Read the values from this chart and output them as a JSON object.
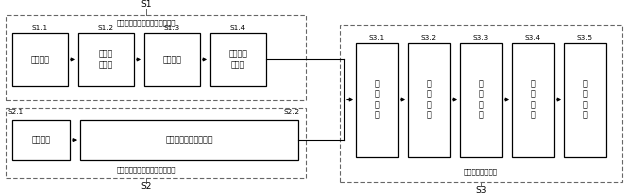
{
  "bg_color": "#ffffff",
  "s1_label": "S1",
  "s1_sublabel": "采集目标的目标数据和环境坐标",
  "s1_box_labels": [
    "S1.1",
    "S1.2",
    "S1.3",
    "S1.4"
  ],
  "s1_boxes": [
    "目标数据",
    "数据特\n征变换",
    "数据关联",
    "自适应滤\n波预测"
  ],
  "s2_label": "S2",
  "s2_sublabel": "采集目标的图像信息和像素坐标",
  "s2_box_labels": [
    "S2.1",
    "S2.2"
  ],
  "s2_box1": "图像信息",
  "s2_box2": "图像处理目标提取特征",
  "s3_label": "S3",
  "s3_sublabel": "雷达视频信息融合",
  "s3_box_labels": [
    "S3.1",
    "S3.2",
    "S3.3",
    "S3.4",
    "S3.5"
  ],
  "s3_boxes": [
    "坐\n标\n变\n换",
    "时\n间\n配\n准",
    "数\n据\n决\n策",
    "数\n据\n关\n联",
    "信\n息\n显\n示"
  ],
  "dashed_color": "#666666",
  "box_color": "#000000",
  "text_color": "#000000",
  "arrow_color": "#000000"
}
